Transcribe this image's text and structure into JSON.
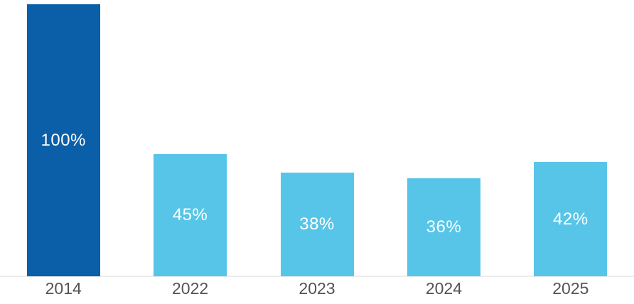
{
  "chart_data": {
    "type": "bar",
    "categories": [
      "2014",
      "2022",
      "2023",
      "2024",
      "2025"
    ],
    "values": [
      100,
      45,
      38,
      36,
      42
    ],
    "value_labels": [
      "100%",
      "45%",
      "38%",
      "36%",
      "42%"
    ],
    "colors": [
      "#0a5fa8",
      "#57c5e8",
      "#57c5e8",
      "#57c5e8",
      "#57c5e8"
    ],
    "title": "",
    "xlabel": "",
    "ylabel": "",
    "ylim": [
      0,
      100
    ],
    "grid": false,
    "legend": false,
    "background_color": "#ffffff",
    "value_label_color": "#ffffff",
    "tick_label_color": "#575150",
    "axis_line_color": "#ededed"
  }
}
